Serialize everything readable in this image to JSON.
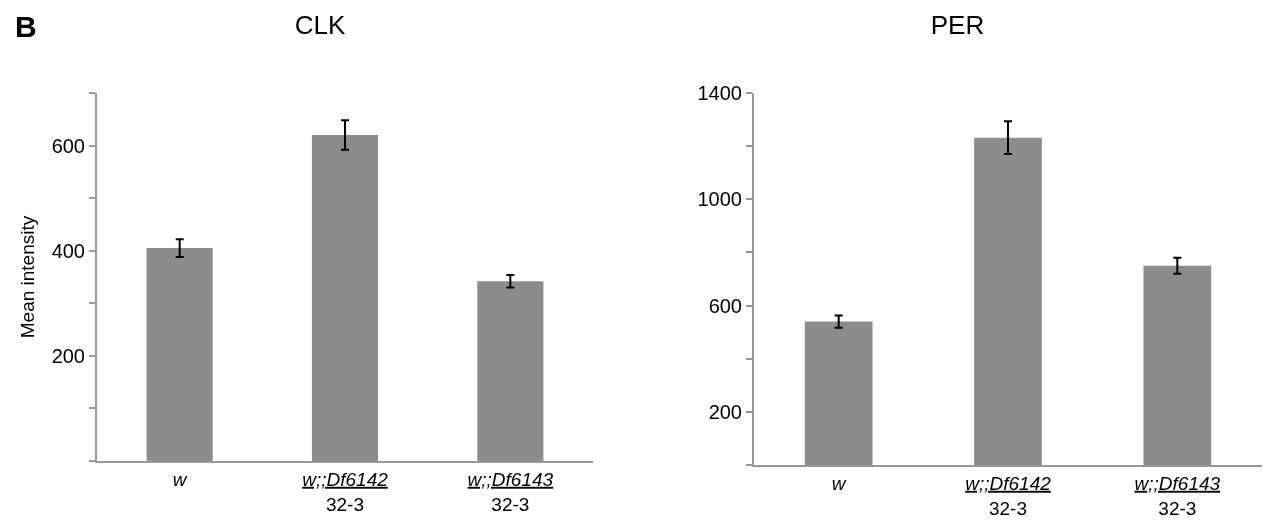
{
  "chart_data": [
    {
      "type": "bar",
      "title": "CLK",
      "ylabel": "Mean intensity",
      "annotations": [
        "B"
      ],
      "categories": [
        "w",
        "w;;Df6142\n32-3",
        "w;;Df6143\n32-3"
      ],
      "series": [
        {
          "color": "#8c8c8c",
          "values": [
            405,
            620,
            342
          ],
          "errors": [
            17,
            28,
            12
          ]
        }
      ],
      "ylim": [
        0,
        700
      ],
      "yticks": [
        {
          "value": 0,
          "label": null
        },
        {
          "value": 100,
          "label": null
        },
        200,
        {
          "value": 300,
          "label": null
        },
        400,
        {
          "value": 500,
          "label": null
        },
        600,
        {
          "value": 700,
          "label": null
        }
      ],
      "grid": false
    },
    {
      "type": "bar",
      "title": "PER",
      "categories": [
        "w",
        "w;;Df6142\n32-3",
        "w;;Df6143\n32-3"
      ],
      "series": [
        {
          "color": "#8c8c8c",
          "values": [
            540,
            1232,
            750
          ],
          "errors": [
            23,
            62,
            30
          ]
        }
      ],
      "ylim": [
        0,
        1400
      ],
      "yticks": [
        {
          "value": 0,
          "label": null
        },
        200,
        {
          "value": 400,
          "label": null
        },
        600,
        {
          "value": 800,
          "label": null
        },
        1000,
        {
          "value": 1200,
          "label": null
        },
        1400
      ],
      "grid": false
    }
  ]
}
